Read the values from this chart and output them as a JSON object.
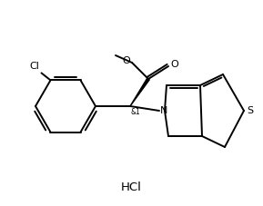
{
  "bg_color": "#ffffff",
  "line_color": "#000000",
  "line_width": 1.4,
  "font_size_label": 7.5,
  "font_size_hcl": 9.5,
  "fig_width": 2.89,
  "fig_height": 2.27,
  "dpi": 100,
  "hcl_text": "HCl",
  "stereo_label": "&1",
  "cl_label": "Cl",
  "n_label": "N",
  "s_label": "S",
  "o_label1": "O",
  "o_label2": "O",
  "me_label": "O"
}
